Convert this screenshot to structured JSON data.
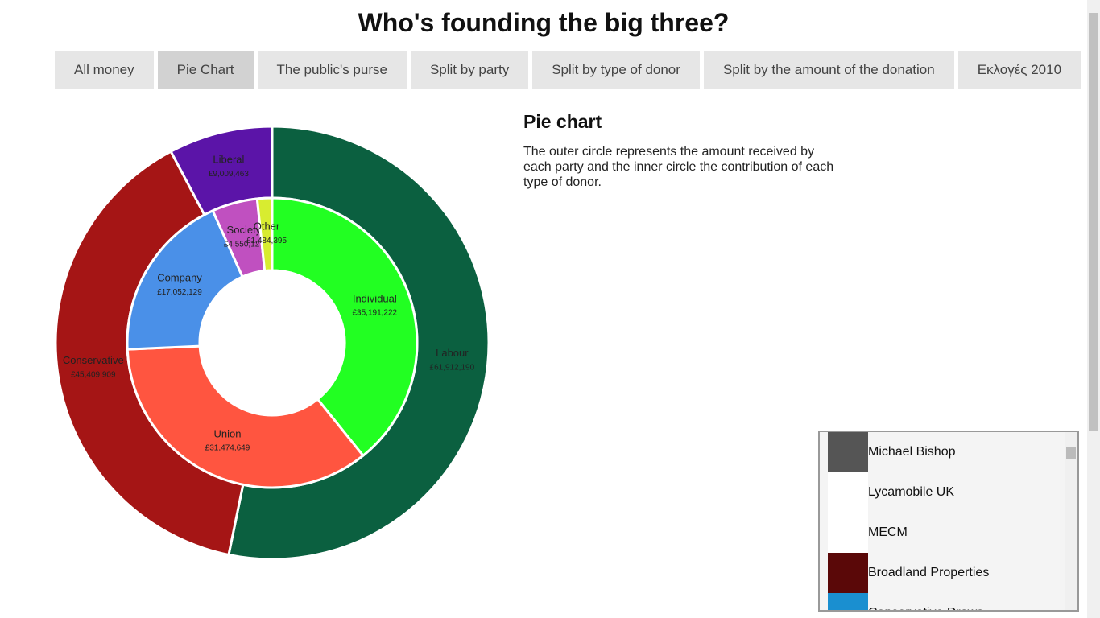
{
  "header": {
    "title": "Who's founding the big three?"
  },
  "tabs": [
    "All money",
    "Pie Chart",
    "The public's purse",
    "Split by party",
    "Split by type of donor",
    "Split by the amount of the donation",
    "Εκλογές 2010"
  ],
  "active_tab": 1,
  "chart_data": {
    "type": "donut",
    "rings": [
      {
        "categories": [
          "Labour",
          "Conservative",
          "Liberal"
        ],
        "values": [
          61912190,
          45409909,
          9009463
        ],
        "value_labels": [
          "£61,912,190",
          "£45,409,909",
          "£9,009,463"
        ],
        "colors": [
          "#0b6040",
          "#a51515",
          "#5b14a8"
        ]
      },
      {
        "categories": [
          "Individual",
          "Union",
          "Company",
          "Society",
          "Other"
        ],
        "values": [
          35191222,
          31474649,
          17052129,
          4550127,
          1484395
        ],
        "value_labels": [
          "£35,191,222",
          "£31,474,649",
          "£17,052,129",
          "£4,550,127",
          "£1,484,395"
        ],
        "colors": [
          "#22ff22",
          "#ff5540",
          "#4a90e8",
          "#c050c0",
          "#d8ec30"
        ]
      }
    ]
  },
  "description": {
    "title": "Pie chart",
    "text": "The outer circle represents the amount received by each party and the inner circle the contribution of each type of donor."
  },
  "donors": [
    "Michael Bishop",
    "Lycamobile UK",
    "MECM",
    "Broadland Properties",
    "Conservative Draws"
  ]
}
